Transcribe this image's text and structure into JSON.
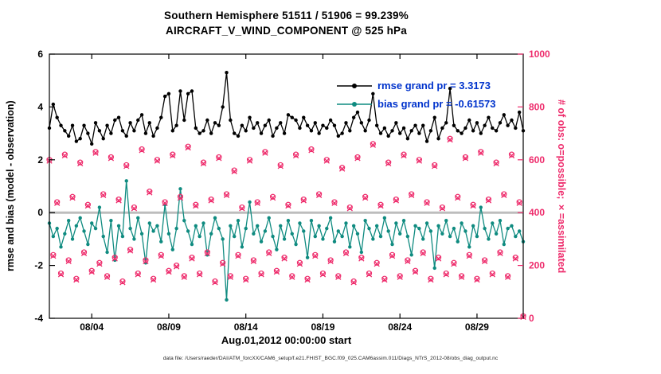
{
  "title": {
    "line1": "Southern Hemisphere 51511 / 51906 = 99.239%",
    "line2": "AIRCRAFT_V_WIND_COMPONENT @ 525 hPa"
  },
  "legend": {
    "text_color": "#0033cc",
    "rmse_label": "rmse grand pr = 3.3173",
    "bias_label": "bias grand pr = -0.61573"
  },
  "footer": {
    "datafile": "data file: /Users/raeder/DAI/ATM_forcXX/CAM6_setup/f.e21.FHIST_BGC.f09_025.CAM6assim.011/Diags_NTrS_2012-08/obs_diag_output.nc"
  },
  "chart_data": {
    "type": "line",
    "title": "Southern Hemisphere 51511 / 51906 = 99.239%",
    "subtitle": "AIRCRAFT_V_WIND_COMPONENT @ 525 hPa",
    "xlabel": "Aug.01,2012 00:00:00 start",
    "x_domain": [
      1.25,
      32
    ],
    "x_start_day": 1.25,
    "x_step_days": 0.25,
    "x_ticks": [
      {
        "day": 4,
        "label": "08/04"
      },
      {
        "day": 9,
        "label": "08/09"
      },
      {
        "day": 14,
        "label": "08/14"
      },
      {
        "day": 19,
        "label": "08/19"
      },
      {
        "day": 24,
        "label": "08/24"
      },
      {
        "day": 29,
        "label": "08/29"
      }
    ],
    "left_axis": {
      "label": "rmse and bias (model - observation)",
      "range": [
        -4,
        6
      ],
      "ticks": [
        -4,
        -2,
        0,
        2,
        4,
        6
      ],
      "color": "#000000"
    },
    "right_axis": {
      "label": "# of obs: o=possible; ×=assimilated",
      "range": [
        0,
        1000
      ],
      "ticks": [
        0,
        200,
        400,
        600,
        800,
        1000
      ],
      "color": "#ee2c6c"
    },
    "zero_line_color": "#bdbdbd",
    "grand_pr": {
      "rmse": 3.3173,
      "bias": -0.61573
    },
    "series": [
      {
        "name": "rmse",
        "axis": "left",
        "style": "dot-line",
        "color": "#000000",
        "values": [
          3.2,
          4.1,
          3.6,
          3.3,
          3.1,
          2.9,
          3.3,
          2.7,
          2.8,
          3.3,
          3.0,
          2.6,
          3.4,
          3.1,
          2.8,
          3.3,
          3.0,
          3.5,
          3.6,
          3.1,
          2.9,
          3.4,
          3.1,
          3.5,
          3.7,
          3.0,
          3.4,
          2.9,
          3.2,
          3.6,
          4.4,
          4.5,
          3.1,
          3.3,
          4.6,
          3.5,
          4.5,
          4.6,
          3.2,
          3.0,
          3.1,
          3.5,
          3.0,
          3.4,
          3.3,
          4.0,
          5.3,
          3.5,
          3.0,
          2.9,
          3.3,
          3.1,
          3.6,
          3.2,
          3.4,
          3.0,
          3.3,
          3.5,
          2.9,
          3.2,
          3.4,
          3.0,
          3.7,
          3.6,
          3.5,
          3.2,
          3.6,
          3.3,
          3.1,
          3.4,
          3.0,
          3.3,
          3.2,
          3.5,
          3.3,
          2.9,
          3.0,
          3.4,
          3.1,
          3.6,
          3.8,
          3.4,
          3.1,
          3.5,
          4.5,
          3.3,
          3.0,
          3.2,
          2.9,
          3.1,
          3.4,
          3.0,
          3.2,
          2.8,
          3.1,
          3.3,
          3.0,
          3.3,
          2.7,
          3.1,
          3.6,
          2.8,
          3.2,
          3.4,
          4.7,
          3.3,
          3.1,
          3.0,
          3.2,
          3.5,
          3.1,
          3.4,
          3.0,
          3.3,
          3.6,
          3.2,
          3.1,
          3.4,
          3.7,
          3.3,
          3.5,
          3.2,
          3.8,
          3.1
        ]
      },
      {
        "name": "bias",
        "axis": "left",
        "style": "dot-line",
        "color": "#0f8b80",
        "values": [
          -0.4,
          -0.9,
          -0.6,
          -1.3,
          -0.8,
          -0.3,
          -1.0,
          -0.5,
          -0.2,
          -0.7,
          -1.2,
          -0.4,
          -0.6,
          0.2,
          -0.9,
          -1.5,
          -0.3,
          -1.8,
          -0.5,
          -0.9,
          1.2,
          -0.6,
          -1.0,
          -0.2,
          -0.8,
          -1.9,
          -0.4,
          -0.7,
          -0.5,
          -1.1,
          0.3,
          -0.8,
          -1.4,
          -0.6,
          0.9,
          -0.3,
          -0.7,
          -1.2,
          -0.5,
          -0.9,
          -0.4,
          -1.6,
          -0.8,
          -0.2,
          -0.6,
          -1.0,
          -3.3,
          -0.5,
          -0.9,
          -0.3,
          -1.3,
          -0.6,
          0.4,
          -0.8,
          -0.5,
          -1.1,
          -0.7,
          -0.2,
          -0.9,
          -1.4,
          -0.5,
          -1.0,
          -0.3,
          -0.8,
          -1.2,
          -0.4,
          -0.7,
          -1.7,
          -0.3,
          -0.9,
          -0.5,
          -1.0,
          -0.6,
          -0.2,
          -1.1,
          -0.7,
          -0.9,
          -0.4,
          -1.3,
          -0.5,
          -0.8,
          -1.5,
          -0.3,
          -0.6,
          -1.0,
          -0.5,
          -0.9,
          -0.2,
          -0.7,
          -1.2,
          -0.4,
          -0.8,
          -0.3,
          -0.9,
          -1.6,
          -0.5,
          -0.6,
          -1.0,
          -0.4,
          -0.7,
          -2.1,
          -0.5,
          -0.8,
          -0.3,
          -0.9,
          -0.6,
          -1.1,
          -0.4,
          -0.7,
          -1.3,
          -0.5,
          -0.9,
          0.2,
          -0.6,
          -1.0,
          -0.4,
          -0.8,
          -0.3,
          -1.2,
          -0.6,
          -0.5,
          -0.9,
          -0.7,
          -1.1
        ]
      },
      {
        "name": "possible",
        "axis": "right",
        "style": "circle",
        "color": "#ee2c6c",
        "values": [
          600,
          240,
          440,
          170,
          620,
          220,
          460,
          150,
          590,
          250,
          430,
          180,
          630,
          210,
          470,
          160,
          610,
          230,
          450,
          140,
          580,
          260,
          420,
          170,
          640,
          220,
          480,
          150,
          600,
          240,
          440,
          180,
          620,
          200,
          460,
          160,
          650,
          230,
          430,
          170,
          590,
          250,
          450,
          140,
          610,
          210,
          470,
          160,
          560,
          240,
          420,
          150,
          600,
          220,
          440,
          170,
          630,
          250,
          460,
          180,
          580,
          230,
          430,
          160,
          620,
          210,
          450,
          150,
          640,
          240,
          470,
          170,
          600,
          220,
          440,
          160,
          570,
          250,
          420,
          140,
          610,
          230,
          460,
          170,
          660,
          210,
          430,
          150,
          590,
          240,
          450,
          160,
          620,
          220,
          470,
          180,
          600,
          250,
          440,
          150,
          580,
          230,
          420,
          170,
          680,
          210,
          460,
          160,
          610,
          240,
          430,
          150,
          630,
          220,
          450,
          170,
          590,
          250,
          470,
          160,
          620,
          230,
          440,
          8
        ]
      },
      {
        "name": "assimilated",
        "axis": "right",
        "style": "cross",
        "color": "#ee2c6c",
        "values": [
          596,
          236,
          436,
          166,
          616,
          216,
          456,
          146,
          586,
          246,
          426,
          176,
          626,
          206,
          466,
          156,
          606,
          226,
          446,
          136,
          576,
          256,
          416,
          166,
          636,
          216,
          476,
          146,
          596,
          236,
          436,
          176,
          616,
          196,
          456,
          156,
          646,
          226,
          426,
          166,
          586,
          246,
          446,
          136,
          606,
          206,
          466,
          156,
          556,
          236,
          416,
          146,
          596,
          216,
          436,
          166,
          626,
          246,
          456,
          176,
          576,
          226,
          426,
          156,
          616,
          206,
          446,
          146,
          636,
          236,
          466,
          166,
          596,
          216,
          436,
          156,
          566,
          246,
          416,
          136,
          606,
          226,
          456,
          166,
          656,
          206,
          426,
          146,
          586,
          236,
          446,
          156,
          616,
          216,
          466,
          176,
          596,
          246,
          436,
          146,
          576,
          226,
          416,
          166,
          676,
          206,
          456,
          156,
          606,
          236,
          426,
          146,
          626,
          216,
          446,
          166,
          586,
          246,
          466,
          156,
          616,
          226,
          436,
          5
        ]
      }
    ]
  }
}
